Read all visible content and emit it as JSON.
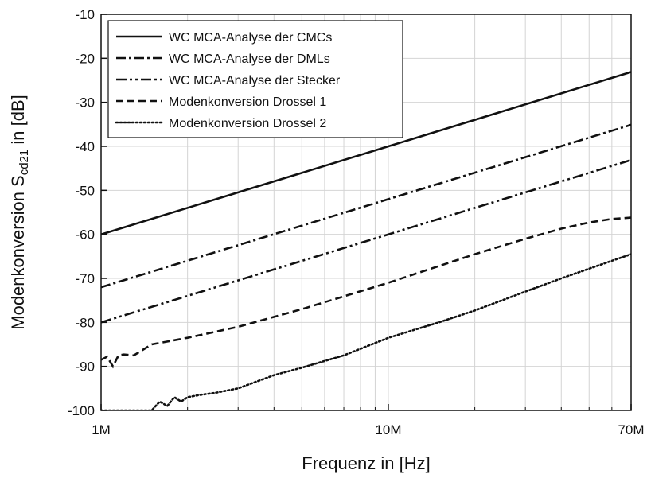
{
  "chart_data": {
    "type": "line",
    "title": "",
    "xlabel": "Frequenz in [Hz]",
    "ylabel_main": "Modenkonversion S",
    "ylabel_sub": "cd21",
    "ylabel_unit": " in [dB]",
    "xscale": "log",
    "xlim": [
      1,
      70
    ],
    "ylim": [
      -100,
      -10
    ],
    "x_unit": "MHz",
    "x_ticks": [
      {
        "value": 1,
        "label": "1M"
      },
      {
        "value": 10,
        "label": "10M"
      },
      {
        "value": 70,
        "label": "70M"
      }
    ],
    "y_ticks": [
      -10,
      -20,
      -30,
      -40,
      -50,
      -60,
      -70,
      -80,
      -90,
      -100
    ],
    "grid": true,
    "legend_position": "top-left",
    "series": [
      {
        "name": "WC MCA-Analyse der CMCs",
        "style": "solid",
        "x": [
          1,
          10,
          70
        ],
        "y": [
          -60,
          -40,
          -23.1
        ]
      },
      {
        "name": "WC MCA-Analyse der DMLs",
        "style": "dashdot",
        "x": [
          1,
          10,
          70
        ],
        "y": [
          -72,
          -52,
          -35.1
        ]
      },
      {
        "name": "WC MCA-Analyse der Stecker",
        "style": "dashdotdot",
        "x": [
          1,
          10,
          70
        ],
        "y": [
          -80,
          -60,
          -43.1
        ]
      },
      {
        "name": "Modenkonversion Drossel 1",
        "style": "dashed",
        "x": [
          1,
          1.05,
          1.1,
          1.15,
          1.2,
          1.3,
          1.5,
          2,
          3,
          5,
          10,
          20,
          30,
          40,
          50,
          60,
          70
        ],
        "y": [
          -88.5,
          -87.8,
          -90,
          -87.5,
          -87.3,
          -87.5,
          -85,
          -83.5,
          -81,
          -77,
          -71,
          -64.5,
          -61,
          -58.7,
          -57.3,
          -56.5,
          -56.2
        ]
      },
      {
        "name": "Modenkonversion Drossel 2",
        "style": "dotted",
        "x": [
          1,
          1.2,
          1.5,
          1.6,
          1.7,
          1.8,
          1.9,
          2,
          2.2,
          2.5,
          3,
          4,
          5,
          7,
          10,
          15,
          20,
          30,
          40,
          50,
          60,
          70
        ],
        "y": [
          -100,
          -100,
          -100,
          -98,
          -99,
          -97,
          -98,
          -97,
          -96.5,
          -96,
          -95,
          -92,
          -90.3,
          -87.5,
          -83.5,
          -80,
          -77.3,
          -73,
          -70,
          -67.8,
          -66,
          -64.5
        ]
      }
    ]
  }
}
